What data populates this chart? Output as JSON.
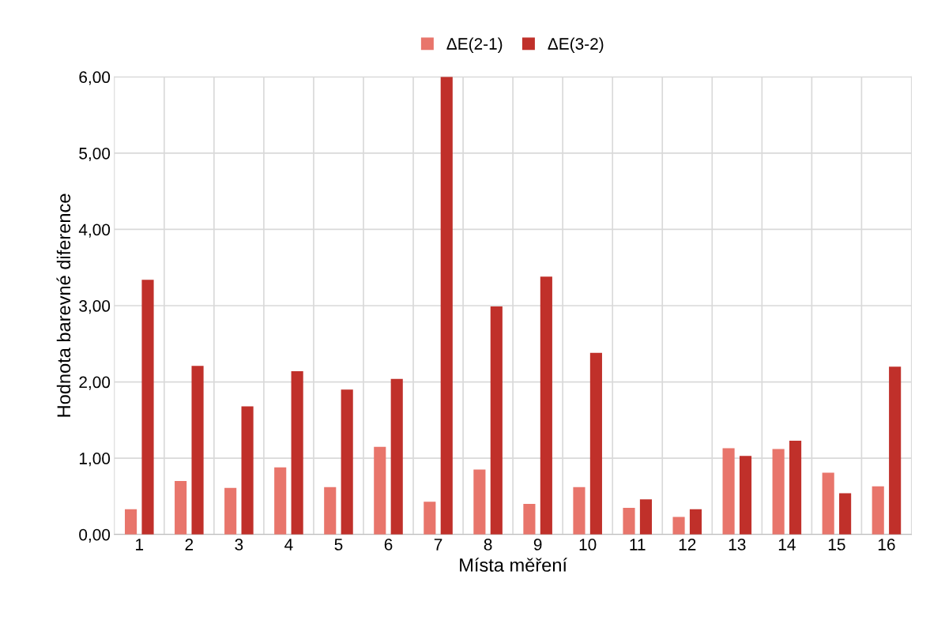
{
  "chart_data": {
    "type": "bar",
    "xlabel": "Místa měření",
    "ylabel": "Hodnota barevné diference",
    "categories": [
      "1",
      "2",
      "3",
      "4",
      "5",
      "6",
      "7",
      "8",
      "9",
      "10",
      "11",
      "12",
      "13",
      "14",
      "15",
      "16"
    ],
    "series": [
      {
        "name": "ΔE(2-1)",
        "color": "#e8756b",
        "values": [
          0.33,
          0.7,
          0.61,
          0.88,
          0.62,
          1.15,
          0.43,
          0.85,
          0.4,
          0.62,
          0.35,
          0.23,
          1.13,
          1.12,
          0.81,
          0.63
        ]
      },
      {
        "name": "ΔE(3-2)",
        "color": "#c0302a",
        "values": [
          3.34,
          2.21,
          1.68,
          2.14,
          1.9,
          2.04,
          6.0,
          2.99,
          3.38,
          2.38,
          0.46,
          0.33,
          1.03,
          1.23,
          0.54,
          2.2
        ]
      }
    ],
    "ylim": [
      0,
      6
    ],
    "yticks": [
      {
        "value": 0,
        "label": "0,00"
      },
      {
        "value": 1,
        "label": "1,00"
      },
      {
        "value": 2,
        "label": "2,00"
      },
      {
        "value": 3,
        "label": "3,00"
      },
      {
        "value": 4,
        "label": "4,00"
      },
      {
        "value": 5,
        "label": "5,00"
      },
      {
        "value": 6,
        "label": "6,00"
      }
    ],
    "grid": true,
    "legend": "top"
  }
}
